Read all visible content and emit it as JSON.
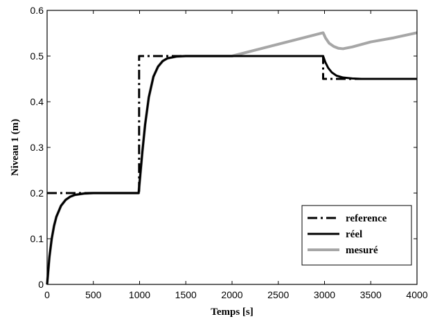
{
  "chart_data": {
    "type": "line",
    "xlabel": "Temps [s]",
    "ylabel": "Niveau 1 (m)",
    "xlim": [
      0,
      4000
    ],
    "ylim": [
      0,
      0.6
    ],
    "xticks": [
      0,
      500,
      1000,
      1500,
      2000,
      2500,
      3000,
      3500,
      4000
    ],
    "yticks": [
      0,
      0.1,
      0.2,
      0.3,
      0.4,
      0.5,
      0.6
    ],
    "xtick_labels": [
      "0",
      "500",
      "1000",
      "1500",
      "2000",
      "2500",
      "3000",
      "3500",
      "4000"
    ],
    "ytick_labels": [
      "0",
      "0.1",
      "0.2",
      "0.3",
      "0.4",
      "0.5",
      "0.6"
    ],
    "grid": false,
    "legend_position": "bottom-right",
    "series": [
      {
        "name": "reference",
        "style": "dash-dot",
        "color": "#000000",
        "points": [
          [
            0,
            0.2
          ],
          [
            995,
            0.2
          ],
          [
            995,
            0.5
          ],
          [
            2985,
            0.5
          ],
          [
            2985,
            0.45
          ],
          [
            4000,
            0.45
          ]
        ]
      },
      {
        "name": "réel",
        "style": "solid",
        "color": "#000000",
        "points": [
          [
            0,
            0.0
          ],
          [
            25,
            0.06
          ],
          [
            50,
            0.1
          ],
          [
            75,
            0.128
          ],
          [
            100,
            0.148
          ],
          [
            150,
            0.172
          ],
          [
            200,
            0.185
          ],
          [
            250,
            0.192
          ],
          [
            300,
            0.196
          ],
          [
            400,
            0.199
          ],
          [
            500,
            0.2
          ],
          [
            990,
            0.2
          ],
          [
            1010,
            0.245
          ],
          [
            1030,
            0.29
          ],
          [
            1060,
            0.35
          ],
          [
            1100,
            0.41
          ],
          [
            1150,
            0.455
          ],
          [
            1200,
            0.477
          ],
          [
            1250,
            0.489
          ],
          [
            1300,
            0.495
          ],
          [
            1400,
            0.499
          ],
          [
            1500,
            0.5
          ],
          [
            2985,
            0.5
          ],
          [
            3010,
            0.486
          ],
          [
            3040,
            0.474
          ],
          [
            3080,
            0.464
          ],
          [
            3130,
            0.457
          ],
          [
            3200,
            0.453
          ],
          [
            3300,
            0.451
          ],
          [
            3400,
            0.45
          ],
          [
            4000,
            0.45
          ]
        ]
      },
      {
        "name": "mesuré",
        "style": "solid",
        "color": "#a6a6a6",
        "points": [
          [
            0,
            0.0
          ],
          [
            25,
            0.06
          ],
          [
            50,
            0.1
          ],
          [
            75,
            0.128
          ],
          [
            100,
            0.148
          ],
          [
            150,
            0.172
          ],
          [
            200,
            0.185
          ],
          [
            250,
            0.192
          ],
          [
            300,
            0.196
          ],
          [
            400,
            0.199
          ],
          [
            500,
            0.2
          ],
          [
            990,
            0.2
          ],
          [
            1010,
            0.245
          ],
          [
            1030,
            0.29
          ],
          [
            1060,
            0.35
          ],
          [
            1100,
            0.41
          ],
          [
            1150,
            0.455
          ],
          [
            1200,
            0.477
          ],
          [
            1250,
            0.489
          ],
          [
            1300,
            0.495
          ],
          [
            1400,
            0.499
          ],
          [
            1500,
            0.5
          ],
          [
            2000,
            0.5
          ],
          [
            2985,
            0.551
          ],
          [
            3010,
            0.54
          ],
          [
            3050,
            0.528
          ],
          [
            3100,
            0.521
          ],
          [
            3150,
            0.517
          ],
          [
            3200,
            0.516
          ],
          [
            3300,
            0.52
          ],
          [
            3500,
            0.531
          ],
          [
            3750,
            0.54
          ],
          [
            4000,
            0.551
          ]
        ]
      }
    ]
  }
}
